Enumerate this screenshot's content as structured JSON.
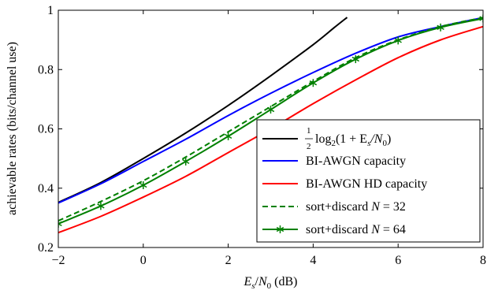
{
  "chart_data": {
    "type": "line",
    "xlabel": "E_s/N_0 (dB)",
    "xlabel_parts": {
      "var": "E",
      "sub1": "s",
      "slash": "/",
      "var2": "N",
      "sub2": "0",
      "unit": " (dB)"
    },
    "ylabel": "achievable rates (bits/channel use)",
    "xlim": [
      -2,
      8
    ],
    "ylim": [
      0.2,
      1
    ],
    "xticks": [
      -2,
      0,
      2,
      4,
      6,
      8
    ],
    "xtick_labels": [
      "−2",
      "0",
      "2",
      "4",
      "6",
      "8"
    ],
    "yticks": [
      0.2,
      0.4,
      0.6,
      0.8,
      1
    ],
    "ytick_labels": [
      "0.2",
      "0.4",
      "0.6",
      "0.8",
      "1"
    ],
    "grid": false,
    "legend_position": "bottom-right",
    "series": [
      {
        "name": "½ log₂(1 + E_s/N_0)",
        "legend_parts": {
          "num": "1",
          "den": "2",
          "fn": "log",
          "sub": "2",
          "expr": "(1 + E",
          "s": "s",
          "slash": "/N",
          "zero": "0",
          "close": ")"
        },
        "color": "#000000",
        "style": "solid",
        "marker": "none",
        "x": [
          -2,
          -1,
          0,
          1,
          2,
          3,
          4,
          4.5,
          4.8
        ],
        "y": [
          0.352,
          0.419,
          0.5,
          0.586,
          0.679,
          0.779,
          0.884,
          0.942,
          0.976
        ]
      },
      {
        "name": "BI-AWGN capacity",
        "color": "#0000ff",
        "style": "solid",
        "marker": "none",
        "x": [
          -2,
          -1,
          0,
          1,
          2,
          3,
          4,
          5,
          6,
          7,
          8
        ],
        "y": [
          0.35,
          0.415,
          0.49,
          0.565,
          0.645,
          0.72,
          0.79,
          0.855,
          0.91,
          0.945,
          0.975
        ]
      },
      {
        "name": "BI-AWGN HD capacity",
        "color": "#ff0000",
        "style": "solid",
        "marker": "none",
        "x": [
          -2,
          -1,
          0,
          1,
          2,
          3,
          4,
          5,
          6,
          7,
          8
        ],
        "y": [
          0.25,
          0.305,
          0.37,
          0.44,
          0.52,
          0.6,
          0.685,
          0.765,
          0.84,
          0.9,
          0.945
        ]
      },
      {
        "name": "sort+discard N = 32",
        "legend_parts": {
          "text": "sort+discard ",
          "var": "N",
          "eq": " = 32"
        },
        "color": "#008000",
        "style": "dashed",
        "marker": "none",
        "x": [
          -2,
          -1,
          0,
          1,
          2,
          3,
          4,
          5,
          6,
          7,
          8
        ],
        "y": [
          0.29,
          0.355,
          0.425,
          0.505,
          0.59,
          0.675,
          0.76,
          0.84,
          0.9,
          0.945,
          0.975
        ]
      },
      {
        "name": "sort+discard N = 64",
        "legend_parts": {
          "text": "sort+discard ",
          "var": "N",
          "eq": " = 64"
        },
        "color": "#008000",
        "style": "solid",
        "marker": "star",
        "x": [
          -2,
          -1,
          0,
          1,
          2,
          3,
          4,
          5,
          6,
          7,
          8
        ],
        "y": [
          0.28,
          0.34,
          0.41,
          0.49,
          0.575,
          0.665,
          0.755,
          0.835,
          0.898,
          0.942,
          0.972
        ]
      }
    ]
  }
}
